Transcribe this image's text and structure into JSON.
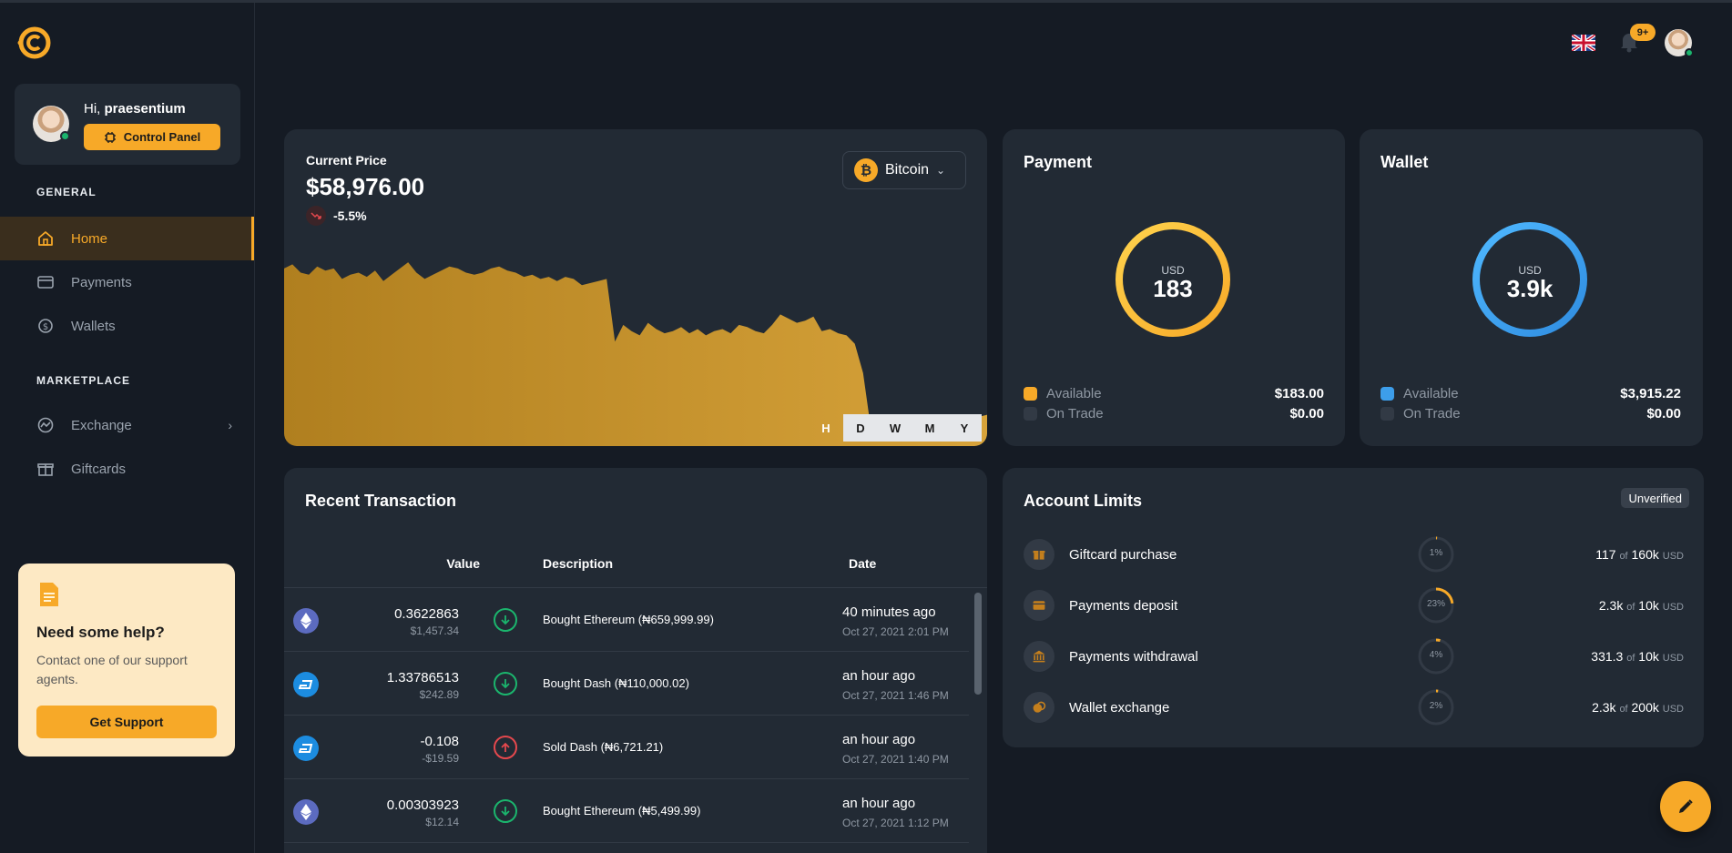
{
  "user": {
    "greeting": "Hi,",
    "name": "praesentium",
    "control_panel_label": "Control Panel"
  },
  "sidebar": {
    "sections": [
      {
        "label": "GENERAL"
      },
      {
        "label": "MARKETPLACE"
      }
    ],
    "items": [
      {
        "label": "Home",
        "icon": "home-icon",
        "active": true
      },
      {
        "label": "Payments",
        "icon": "wallet-card-icon"
      },
      {
        "label": "Wallets",
        "icon": "coins-icon"
      },
      {
        "label": "Exchange",
        "icon": "exchange-icon"
      },
      {
        "label": "Giftcards",
        "icon": "gift-icon"
      }
    ],
    "help": {
      "title": "Need some help?",
      "text": "Contact one of our support agents.",
      "button": "Get Support"
    }
  },
  "header": {
    "notifications_badge": "9+",
    "language": "English (UK flag)"
  },
  "price": {
    "label": "Current Price",
    "value": "$58,976.00",
    "change": "-5.5%",
    "coin": "Bitcoin",
    "ranges": [
      "H",
      "D",
      "W",
      "M",
      "Y"
    ]
  },
  "chart_data": {
    "type": "area",
    "title": "",
    "series": [
      {
        "color": "#c8962a",
        "values": [
          60,
          62,
          58,
          57,
          61,
          59,
          60,
          55,
          57,
          58,
          56,
          59,
          54,
          57,
          60,
          63,
          58,
          55,
          57,
          59,
          61,
          60,
          58,
          57,
          58,
          60,
          61,
          59,
          58,
          56,
          57,
          55,
          56,
          54,
          56,
          55,
          52,
          53,
          54,
          55,
          25,
          33,
          30,
          28,
          34,
          31,
          29,
          30,
          32,
          29,
          31,
          28,
          30,
          31,
          29,
          33,
          32,
          30,
          29,
          33,
          38,
          36,
          34,
          35,
          37,
          30,
          31,
          29,
          28,
          24,
          10,
          -18,
          -12,
          -13,
          -12,
          -14,
          -15,
          -12,
          -13,
          -11,
          -10,
          -12,
          -14,
          -13,
          -11,
          -10
        ]
      }
    ],
    "grid": false,
    "legend": "none"
  },
  "payment": {
    "title": "Payment",
    "currency": "USD",
    "total": "183",
    "fraction_filled": 1.0,
    "color": "#f7a928",
    "rows": [
      {
        "label": "Available",
        "amount": "$183.00",
        "color": "#f7a928"
      },
      {
        "label": "On Trade",
        "amount": "$0.00",
        "color": "#323a45"
      }
    ]
  },
  "wallet": {
    "title": "Wallet",
    "currency": "USD",
    "total": "3.9k",
    "fraction_filled": 1.0,
    "color": "#3d9eea",
    "rows": [
      {
        "label": "Available",
        "amount": "$3,915.22",
        "color": "#3d9eea"
      },
      {
        "label": "On Trade",
        "amount": "$0.00",
        "color": "#323a45"
      }
    ]
  },
  "transactions": {
    "title": "Recent Transaction",
    "headers": {
      "value": "Value",
      "description": "Description",
      "date": "Date"
    },
    "rows": [
      {
        "coin": "ethereum-icon",
        "amount": "0.3622863",
        "usd": "$1,457.34",
        "direction": "in",
        "description": "Bought Ethereum (₦659,999.99)",
        "time": "40 minutes ago",
        "date": "Oct 27, 2021 2:01 PM"
      },
      {
        "coin": "dash-icon",
        "amount": "1.33786513",
        "usd": "$242.89",
        "direction": "in",
        "description": "Bought Dash (₦110,000.02)",
        "time": "an hour ago",
        "date": "Oct 27, 2021 1:46 PM"
      },
      {
        "coin": "dash-icon",
        "amount": "-0.108",
        "usd": "-$19.59",
        "direction": "out",
        "description": "Sold Dash (₦6,721.21)",
        "time": "an hour ago",
        "date": "Oct 27, 2021 1:40 PM"
      },
      {
        "coin": "ethereum-icon",
        "amount": "0.00303923",
        "usd": "$12.14",
        "direction": "in",
        "description": "Bought Ethereum (₦5,499.99)",
        "time": "an hour ago",
        "date": "Oct 27, 2021 1:12 PM"
      }
    ]
  },
  "limits": {
    "title": "Account Limits",
    "status": "Unverified",
    "rows": [
      {
        "name": "Giftcard purchase",
        "icon": "gift-icon",
        "percent_label": "1%",
        "percent": 1,
        "used": "117",
        "of": "of",
        "limit": "160k",
        "unit": "USD"
      },
      {
        "name": "Payments deposit",
        "icon": "wallet-card-icon",
        "percent_label": "23%",
        "percent": 23,
        "used": "2.3k",
        "of": "of",
        "limit": "10k",
        "unit": "USD"
      },
      {
        "name": "Payments withdrawal",
        "icon": "bank-icon",
        "percent_label": "4%",
        "percent": 4,
        "used": "331.3",
        "of": "of",
        "limit": "10k",
        "unit": "USD"
      },
      {
        "name": "Wallet exchange",
        "icon": "coins-icon",
        "percent_label": "2%",
        "percent": 2,
        "used": "2.3k",
        "of": "of",
        "limit": "200k",
        "unit": "USD"
      }
    ]
  },
  "colors": {
    "accent": "#f7a928",
    "background": "#151b24",
    "card": "#222a34",
    "success": "#1bb56d",
    "danger": "#e5484d",
    "wallet_blue": "#3d9eea"
  }
}
